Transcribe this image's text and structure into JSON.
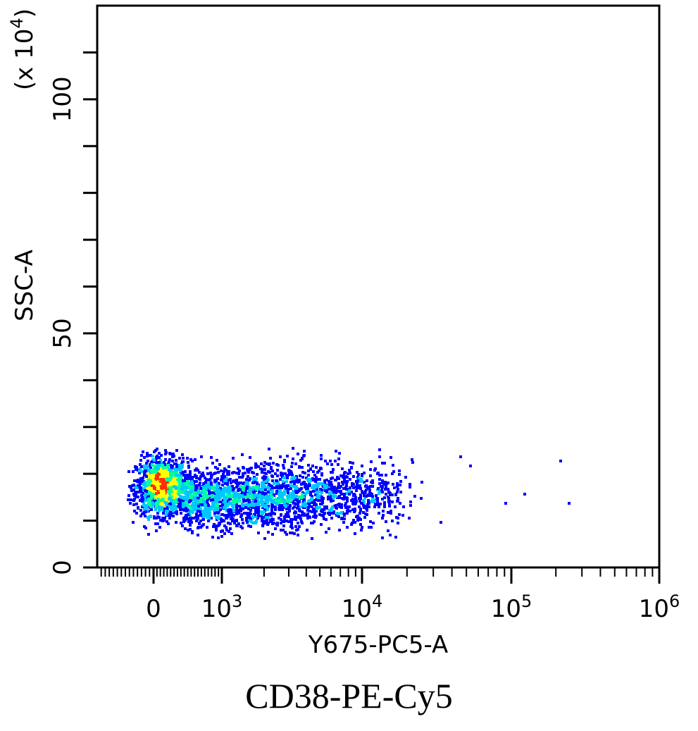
{
  "chart_data": {
    "type": "scatter",
    "style": "density-dot-plot",
    "xlabel": "Y675-PC5-A",
    "ylabel": "SSC-A",
    "y_multiplier_label": "(x 10",
    "y_multiplier_exp": "4",
    "x_scale": "biexponential",
    "xlim": [
      -700,
      1000000
    ],
    "ylim": [
      0,
      120
    ],
    "x_ticks": [
      {
        "value": 0,
        "base": "0",
        "exp": ""
      },
      {
        "value": 1000,
        "base": "10",
        "exp": "3"
      },
      {
        "value": 10000,
        "base": "10",
        "exp": "4"
      },
      {
        "value": 100000,
        "base": "10",
        "exp": "5"
      },
      {
        "value": 1000000,
        "base": "10",
        "exp": "6"
      }
    ],
    "y_ticks": [
      {
        "value": 0,
        "label": "0"
      },
      {
        "value": 50,
        "label": "50"
      },
      {
        "value": 100,
        "label": "100"
      }
    ],
    "grid": false,
    "legend": "none",
    "color_scale": [
      "#0000ff",
      "#00c8ff",
      "#00ffa0",
      "#ffff00",
      "#ff3000"
    ],
    "populations": [
      {
        "x_center": 80,
        "y_center": 17.5,
        "x_spread": "tight",
        "y_spread": 3.5,
        "density": "highest"
      },
      {
        "x_center": 1500,
        "y_center": 15,
        "x_spread": "broad",
        "y_spread": 4,
        "density": "medium"
      },
      {
        "x_center": 6000,
        "y_center": 16,
        "x_spread": "broad",
        "y_spread": 4,
        "density": "low"
      }
    ],
    "outliers": [
      {
        "x": 90000,
        "y": 14
      },
      {
        "x": 120000,
        "y": 16
      },
      {
        "x": 210000,
        "y": 23
      },
      {
        "x": 240000,
        "y": 14
      },
      {
        "x": 33000,
        "y": 10
      },
      {
        "x": 45000,
        "y": 24
      },
      {
        "x": 52000,
        "y": 22
      }
    ]
  },
  "caption": "CD38-PE-Cy5"
}
